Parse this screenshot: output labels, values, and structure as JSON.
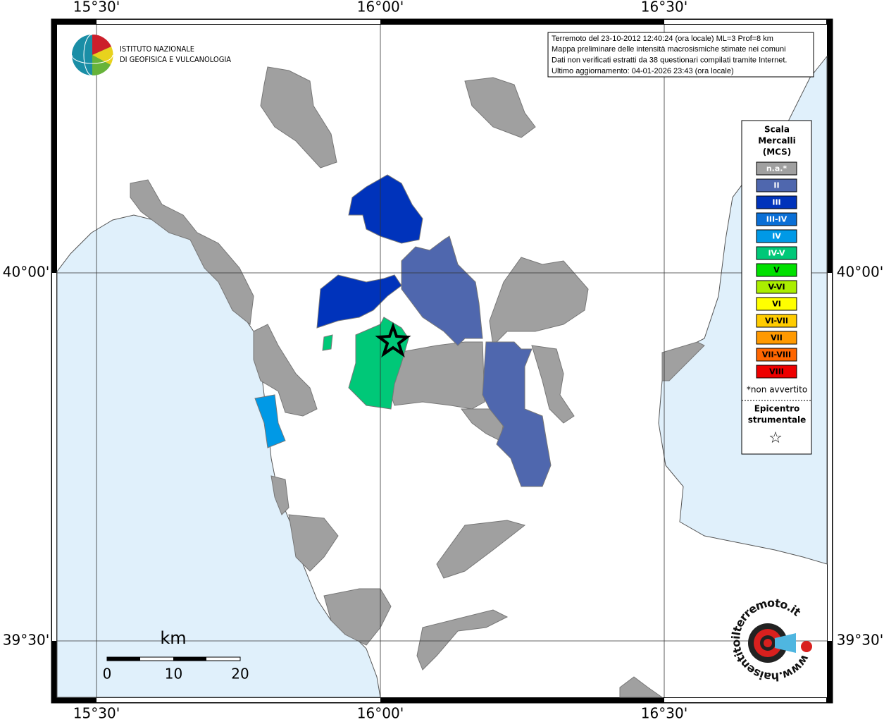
{
  "graticule": {
    "lon_labels": [
      "15°30'",
      "16°00'",
      "16°30'"
    ],
    "lat_labels": [
      "40°00'",
      "39°30'"
    ]
  },
  "logo": {
    "lines": [
      "ISTITUTO NAZIONALE",
      "DI GEOFISICA E VULCANOLOGIA"
    ]
  },
  "info": {
    "lines": [
      "Terremoto del 23-10-2012 12:40:24 (ora locale) ML=3 Prof=8 km",
      "Mappa preliminare delle intensità macrosismiche stimate nei comuni",
      "Dati non verificati estratti da 38 questionari compilati tramite Internet.",
      "Ultimo aggiornamento: 04-01-2026 23:43 (ora locale)"
    ]
  },
  "legend": {
    "title": [
      "Scala",
      "Mercalli",
      "(MCS)"
    ],
    "items": [
      {
        "label": "n.a.*",
        "color": "#a0a0a0"
      },
      {
        "label": "II",
        "color": "#4f67ae"
      },
      {
        "label": "III",
        "color": "#0033bb"
      },
      {
        "label": "III-IV",
        "color": "#0a6fd6"
      },
      {
        "label": "IV",
        "color": "#0099e6"
      },
      {
        "label": "IV-V",
        "color": "#00c878"
      },
      {
        "label": "V",
        "color": "#00e000"
      },
      {
        "label": "V-VI",
        "color": "#aaee00"
      },
      {
        "label": "VI",
        "color": "#ffff00"
      },
      {
        "label": "VI-VII",
        "color": "#ffcc00"
      },
      {
        "label": "VII",
        "color": "#ff9900"
      },
      {
        "label": "VII-VIII",
        "color": "#ff6600"
      },
      {
        "label": "VIII",
        "color": "#ee0000"
      }
    ],
    "note": "*non avvertito",
    "epicenter_title": [
      "Epicentro",
      "strumentale"
    ],
    "epicenter_symbol": "☆"
  },
  "scale_bar": {
    "unit": "km",
    "labels": [
      "0",
      "10",
      "20"
    ]
  },
  "watermark": "www.haisentitoilterremoto.it"
}
